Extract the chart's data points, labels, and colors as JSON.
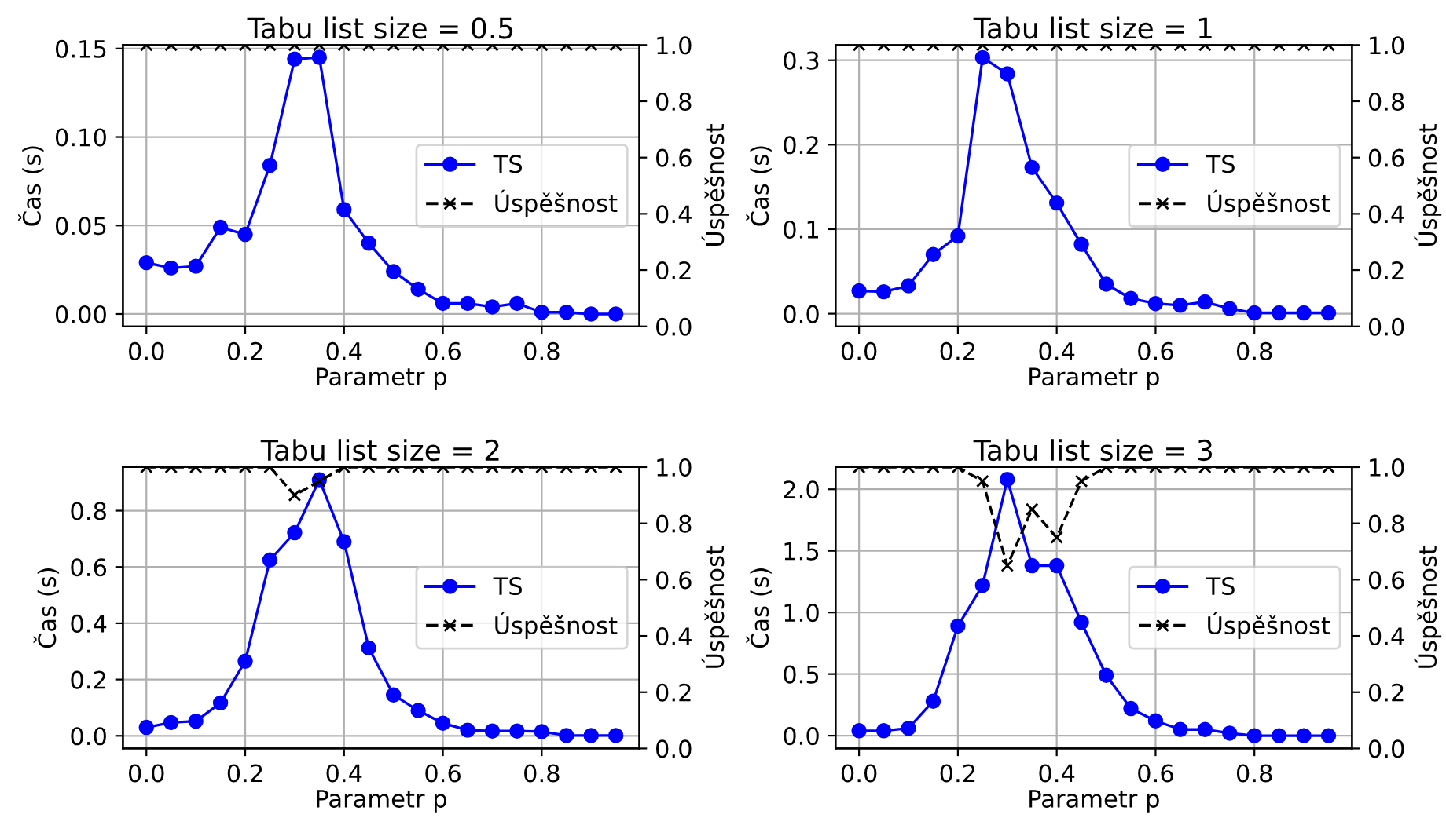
{
  "chart_data": [
    {
      "type": "line",
      "title": "Tabu list size = 0.5",
      "xlabel": "Parametr p",
      "ylabel": "Čas (s)",
      "y2label": "Úspěšnost",
      "x": [
        0.0,
        0.05,
        0.1,
        0.15,
        0.2,
        0.25,
        0.3,
        0.35,
        0.4,
        0.45,
        0.5,
        0.55,
        0.6,
        0.65,
        0.7,
        0.75,
        0.8,
        0.85,
        0.9,
        0.95
      ],
      "series": [
        {
          "name": "TS",
          "color": "#0000ff",
          "marker": "circle",
          "line_style": "solid",
          "values": [
            0.029,
            0.026,
            0.027,
            0.049,
            0.045,
            0.084,
            0.144,
            0.145,
            0.059,
            0.04,
            0.024,
            0.014,
            0.006,
            0.006,
            0.004,
            0.006,
            0.001,
            0.001,
            0.0,
            0.0
          ]
        },
        {
          "name": "Úspěšnost",
          "color": "#000000",
          "marker": "cross",
          "line_style": "dashed",
          "axis": "y2",
          "values": [
            1,
            1,
            1,
            1,
            1,
            1,
            1,
            1,
            1,
            1,
            1,
            1,
            1,
            1,
            1,
            1,
            1,
            1,
            1,
            1
          ]
        }
      ],
      "xlim": [
        -0.0475,
        0.9975
      ],
      "xticks": [
        {
          "value": 0.0,
          "label": "0.0"
        },
        {
          "value": 0.2,
          "label": "0.2"
        },
        {
          "value": 0.4,
          "label": "0.4"
        },
        {
          "value": 0.6,
          "label": "0.6"
        },
        {
          "value": 0.8,
          "label": "0.8"
        }
      ],
      "ylim": [
        -0.007,
        0.152
      ],
      "yticks": [
        {
          "value": 0.0,
          "label": "0.00"
        },
        {
          "value": 0.05,
          "label": "0.05"
        },
        {
          "value": 0.1,
          "label": "0.10"
        },
        {
          "value": 0.15,
          "label": "0.15"
        }
      ],
      "y2lim": [
        0,
        1
      ],
      "y2ticks": [
        {
          "value": 0.0,
          "label": "0.0"
        },
        {
          "value": 0.2,
          "label": "0.2"
        },
        {
          "value": 0.4,
          "label": "0.4"
        },
        {
          "value": 0.6,
          "label": "0.6"
        },
        {
          "value": 0.8,
          "label": "0.8"
        },
        {
          "value": 1.0,
          "label": "1.0"
        }
      ],
      "grid": true,
      "legend": "right"
    },
    {
      "type": "line",
      "title": "Tabu list size = 1",
      "xlabel": "Parametr p",
      "ylabel": "Čas (s)",
      "y2label": "Úspěšnost",
      "x": [
        0.0,
        0.05,
        0.1,
        0.15,
        0.2,
        0.25,
        0.3,
        0.35,
        0.4,
        0.45,
        0.5,
        0.55,
        0.6,
        0.65,
        0.7,
        0.75,
        0.8,
        0.85,
        0.9,
        0.95
      ],
      "series": [
        {
          "name": "TS",
          "color": "#0000ff",
          "marker": "circle",
          "line_style": "solid",
          "values": [
            0.027,
            0.026,
            0.033,
            0.07,
            0.092,
            0.303,
            0.284,
            0.173,
            0.131,
            0.082,
            0.035,
            0.018,
            0.012,
            0.01,
            0.014,
            0.006,
            0.001,
            0.001,
            0.001,
            0.001
          ]
        },
        {
          "name": "Úspěšnost",
          "color": "#000000",
          "marker": "cross",
          "line_style": "dashed",
          "axis": "y2",
          "values": [
            1,
            1,
            1,
            1,
            1,
            1,
            1,
            1,
            1,
            1,
            1,
            1,
            1,
            1,
            1,
            1,
            1,
            1,
            1,
            1
          ]
        }
      ],
      "xlim": [
        -0.0475,
        0.9975
      ],
      "xticks": [
        {
          "value": 0.0,
          "label": "0.0"
        },
        {
          "value": 0.2,
          "label": "0.2"
        },
        {
          "value": 0.4,
          "label": "0.4"
        },
        {
          "value": 0.6,
          "label": "0.6"
        },
        {
          "value": 0.8,
          "label": "0.8"
        }
      ],
      "ylim": [
        -0.015,
        0.318
      ],
      "yticks": [
        {
          "value": 0.0,
          "label": "0.0"
        },
        {
          "value": 0.1,
          "label": "0.1"
        },
        {
          "value": 0.2,
          "label": "0.2"
        },
        {
          "value": 0.3,
          "label": "0.3"
        }
      ],
      "y2lim": [
        0,
        1
      ],
      "y2ticks": [
        {
          "value": 0.0,
          "label": "0.0"
        },
        {
          "value": 0.2,
          "label": "0.2"
        },
        {
          "value": 0.4,
          "label": "0.4"
        },
        {
          "value": 0.6,
          "label": "0.6"
        },
        {
          "value": 0.8,
          "label": "0.8"
        },
        {
          "value": 1.0,
          "label": "1.0"
        }
      ],
      "grid": true,
      "legend": "right"
    },
    {
      "type": "line",
      "title": "Tabu list size = 2",
      "xlabel": "Parametr p",
      "ylabel": "Čas (s)",
      "y2label": "Úspěšnost",
      "x": [
        0.0,
        0.05,
        0.1,
        0.15,
        0.2,
        0.25,
        0.3,
        0.35,
        0.4,
        0.45,
        0.5,
        0.55,
        0.6,
        0.65,
        0.7,
        0.75,
        0.8,
        0.85,
        0.9,
        0.95
      ],
      "series": [
        {
          "name": "TS",
          "color": "#0000ff",
          "marker": "circle",
          "line_style": "solid",
          "values": [
            0.03,
            0.047,
            0.052,
            0.117,
            0.265,
            0.625,
            0.722,
            0.91,
            0.69,
            0.312,
            0.145,
            0.09,
            0.045,
            0.02,
            0.017,
            0.017,
            0.015,
            0.001,
            0.001,
            0.001
          ]
        },
        {
          "name": "Úspěšnost",
          "color": "#000000",
          "marker": "cross",
          "line_style": "dashed",
          "axis": "y2",
          "values": [
            1,
            1,
            1,
            1,
            1,
            1,
            0.9,
            0.95,
            1,
            1,
            1,
            1,
            1,
            1,
            1,
            1,
            1,
            1,
            1,
            1
          ]
        }
      ],
      "xlim": [
        -0.0475,
        0.9975
      ],
      "xticks": [
        {
          "value": 0.0,
          "label": "0.0"
        },
        {
          "value": 0.2,
          "label": "0.2"
        },
        {
          "value": 0.4,
          "label": "0.4"
        },
        {
          "value": 0.6,
          "label": "0.6"
        },
        {
          "value": 0.8,
          "label": "0.8"
        }
      ],
      "ylim": [
        -0.045,
        0.955
      ],
      "yticks": [
        {
          "value": 0.0,
          "label": "0.0"
        },
        {
          "value": 0.2,
          "label": "0.2"
        },
        {
          "value": 0.4,
          "label": "0.4"
        },
        {
          "value": 0.6,
          "label": "0.6"
        },
        {
          "value": 0.8,
          "label": "0.8"
        }
      ],
      "y2lim": [
        0,
        1
      ],
      "y2ticks": [
        {
          "value": 0.0,
          "label": "0.0"
        },
        {
          "value": 0.2,
          "label": "0.2"
        },
        {
          "value": 0.4,
          "label": "0.4"
        },
        {
          "value": 0.6,
          "label": "0.6"
        },
        {
          "value": 0.8,
          "label": "0.8"
        },
        {
          "value": 1.0,
          "label": "1.0"
        }
      ],
      "grid": true,
      "legend": "right"
    },
    {
      "type": "line",
      "title": "Tabu list size = 3",
      "xlabel": "Parametr p",
      "ylabel": "Čas (s)",
      "y2label": "Úspěšnost",
      "x": [
        0.0,
        0.05,
        0.1,
        0.15,
        0.2,
        0.25,
        0.3,
        0.35,
        0.4,
        0.45,
        0.5,
        0.55,
        0.6,
        0.65,
        0.7,
        0.75,
        0.8,
        0.85,
        0.9,
        0.95
      ],
      "series": [
        {
          "name": "TS",
          "color": "#0000ff",
          "marker": "circle",
          "line_style": "solid",
          "values": [
            0.04,
            0.04,
            0.06,
            0.28,
            0.89,
            1.22,
            2.08,
            1.38,
            1.38,
            0.92,
            0.49,
            0.22,
            0.12,
            0.05,
            0.05,
            0.02,
            0.0,
            0.0,
            0.0,
            0.0
          ]
        },
        {
          "name": "Úspěšnost",
          "color": "#000000",
          "marker": "cross",
          "line_style": "dashed",
          "axis": "y2",
          "values": [
            1,
            1,
            1,
            1,
            1,
            0.95,
            0.65,
            0.85,
            0.75,
            0.95,
            1,
            1,
            1,
            1,
            1,
            1,
            1,
            1,
            1,
            1
          ]
        }
      ],
      "xlim": [
        -0.0475,
        0.9975
      ],
      "xticks": [
        {
          "value": 0.0,
          "label": "0.0"
        },
        {
          "value": 0.2,
          "label": "0.2"
        },
        {
          "value": 0.4,
          "label": "0.4"
        },
        {
          "value": 0.6,
          "label": "0.6"
        },
        {
          "value": 0.8,
          "label": "0.8"
        }
      ],
      "ylim": [
        -0.104,
        2.18
      ],
      "yticks": [
        {
          "value": 0.0,
          "label": "0.0"
        },
        {
          "value": 0.5,
          "label": "0.5"
        },
        {
          "value": 1.0,
          "label": "1.0"
        },
        {
          "value": 1.5,
          "label": "1.5"
        },
        {
          "value": 2.0,
          "label": "2.0"
        }
      ],
      "y2lim": [
        0,
        1
      ],
      "y2ticks": [
        {
          "value": 0.0,
          "label": "0.0"
        },
        {
          "value": 0.2,
          "label": "0.2"
        },
        {
          "value": 0.4,
          "label": "0.4"
        },
        {
          "value": 0.6,
          "label": "0.6"
        },
        {
          "value": 0.8,
          "label": "0.8"
        },
        {
          "value": 1.0,
          "label": "1.0"
        }
      ],
      "grid": true,
      "legend": "right"
    }
  ]
}
